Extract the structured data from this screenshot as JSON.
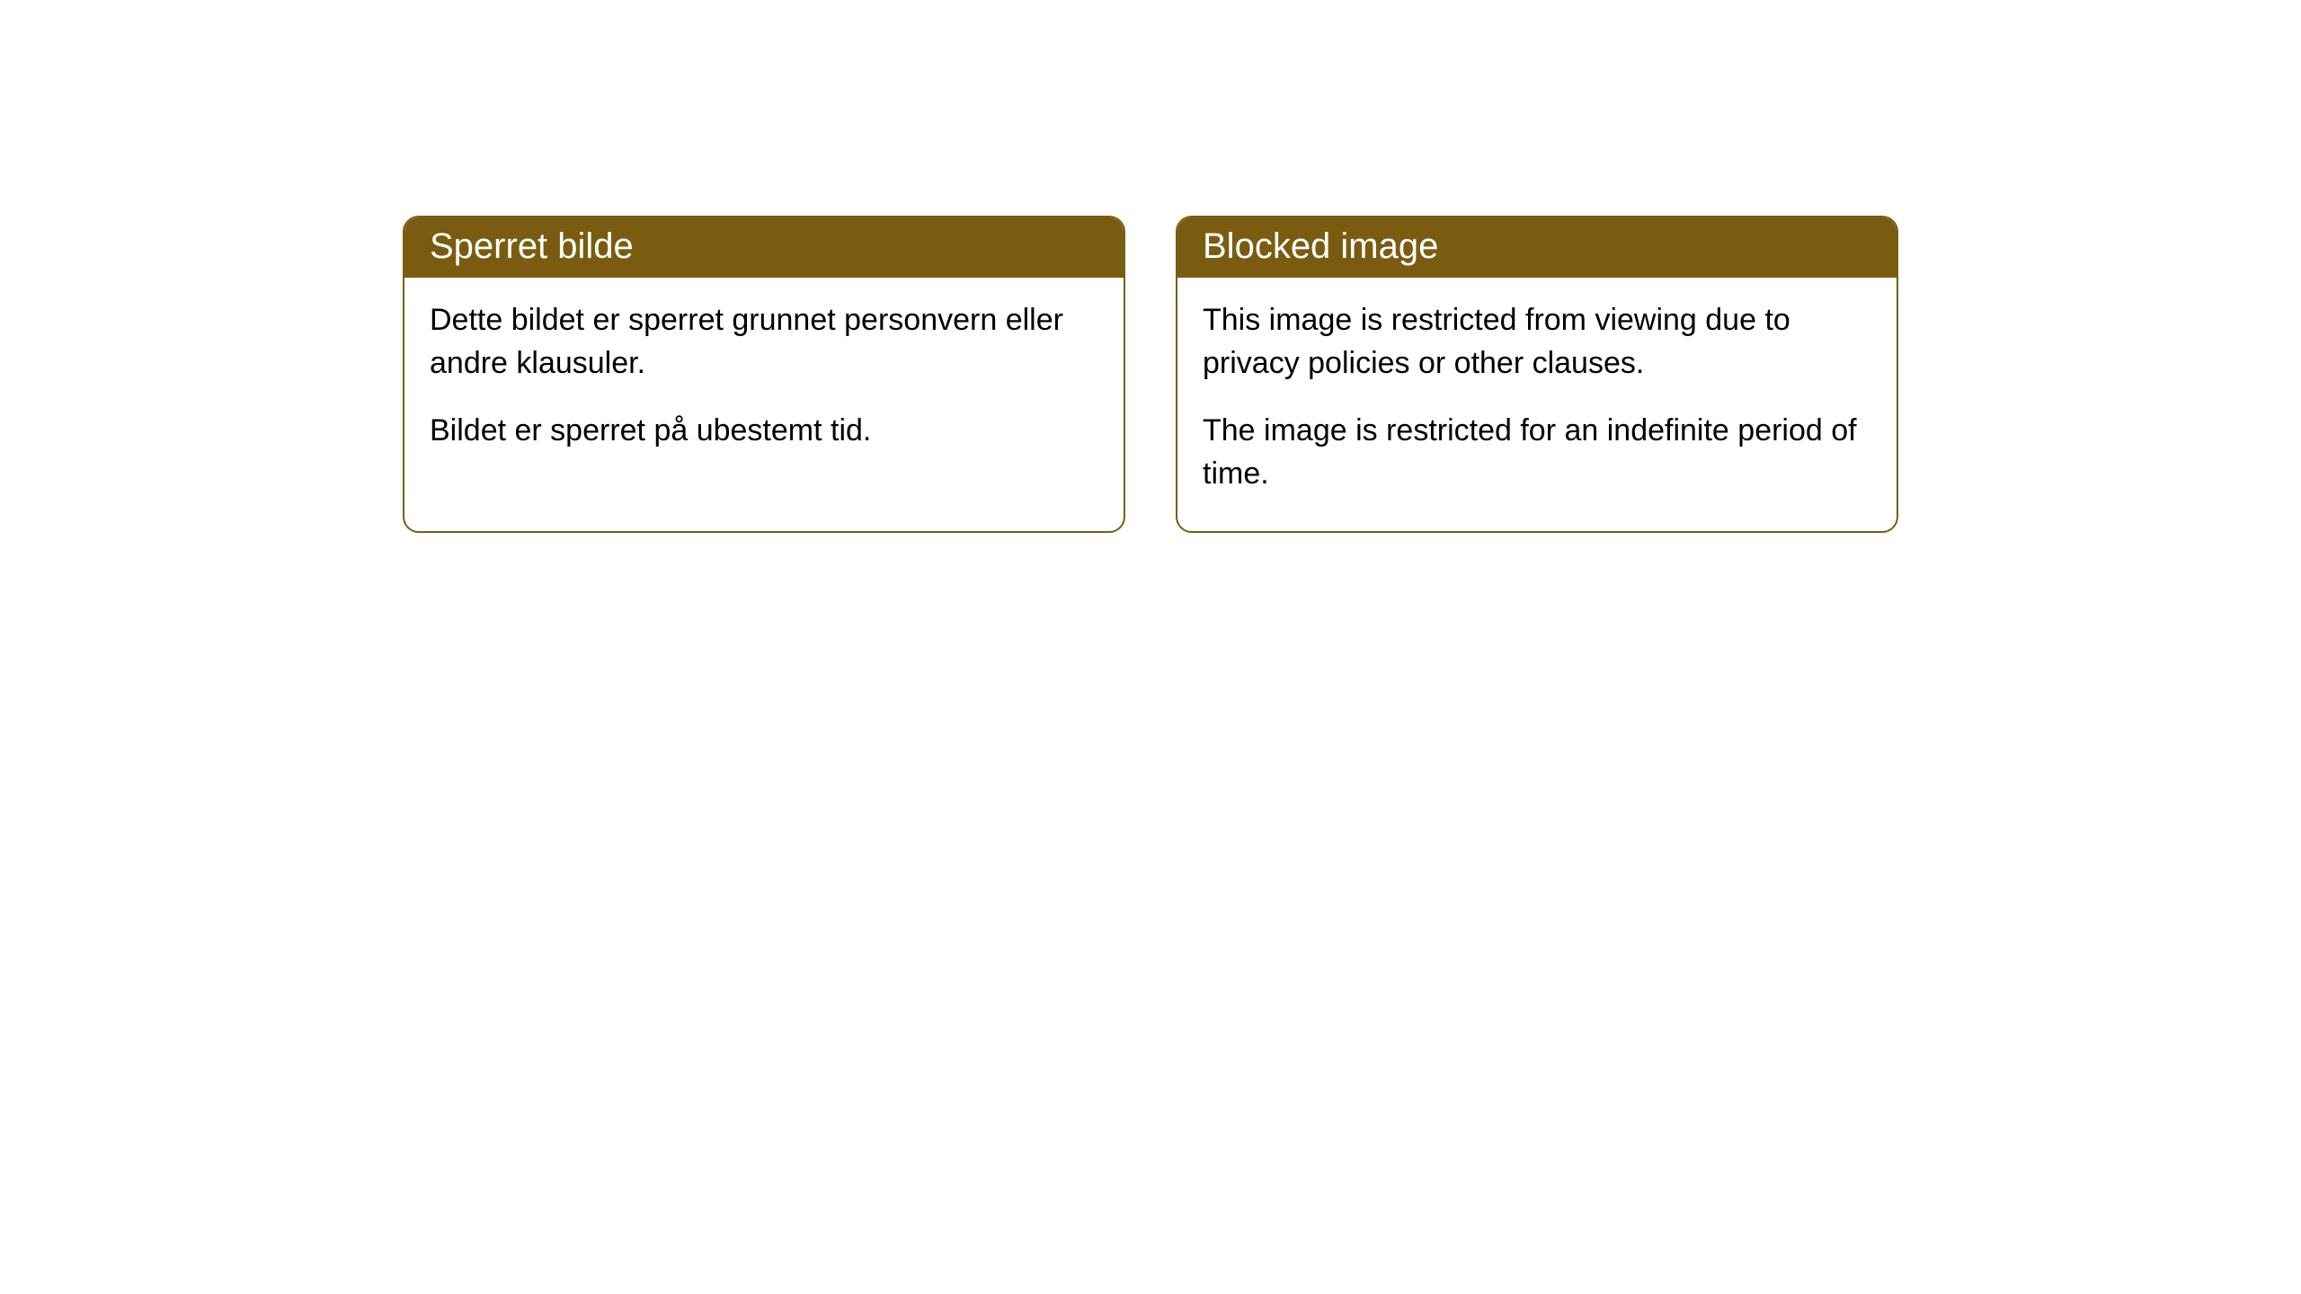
{
  "cards": [
    {
      "title": "Sperret bilde",
      "paragraph1": "Dette bildet er sperret grunnet personvern eller andre klausuler.",
      "paragraph2": "Bildet er sperret på ubestemt tid."
    },
    {
      "title": "Blocked image",
      "paragraph1": "This image is restricted from viewing due to privacy policies or other clauses.",
      "paragraph2": "The image is restricted for an indefinite period of time."
    }
  ],
  "style": {
    "header_bg": "#7a5c11",
    "header_fg": "#ffffff",
    "border_color": "#7a5c11",
    "body_bg": "#ffffff",
    "title_fontsize": 40,
    "body_fontsize": 34,
    "border_radius": 18
  }
}
